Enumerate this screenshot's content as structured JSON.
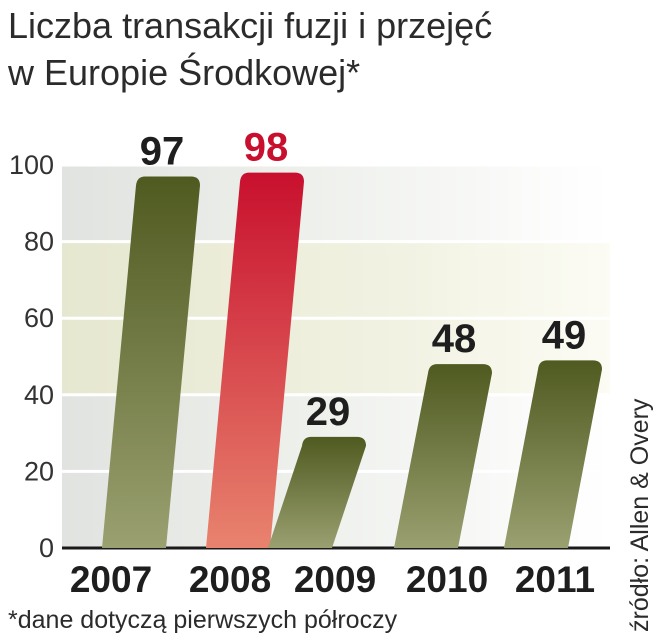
{
  "chart_data": {
    "type": "bar",
    "title": [
      "Liczba transakcji fuzji i przejęć",
      "w Europie Środkowej*"
    ],
    "categories": [
      "2007",
      "2008",
      "2009",
      "2010",
      "2011"
    ],
    "values": [
      97,
      98,
      29,
      48,
      49
    ],
    "value_labels": [
      "97",
      "98",
      "29",
      "48",
      "49"
    ],
    "highlight_index": 1,
    "ylim": [
      0,
      100
    ],
    "yticks": [
      "0",
      "20",
      "40",
      "60",
      "80",
      "100"
    ],
    "grid": true,
    "note": "*dane dotyczą pierwszych półroczy",
    "source": "źródło: Allen & Overy",
    "colors": {
      "bar_dark": "#4f5a20",
      "bar_light": "#9aa070",
      "highlight_dark": "#c8102e",
      "highlight_light": "#e8836e",
      "highlight_label": "#c8102e",
      "label": "#1e1e1e"
    }
  }
}
